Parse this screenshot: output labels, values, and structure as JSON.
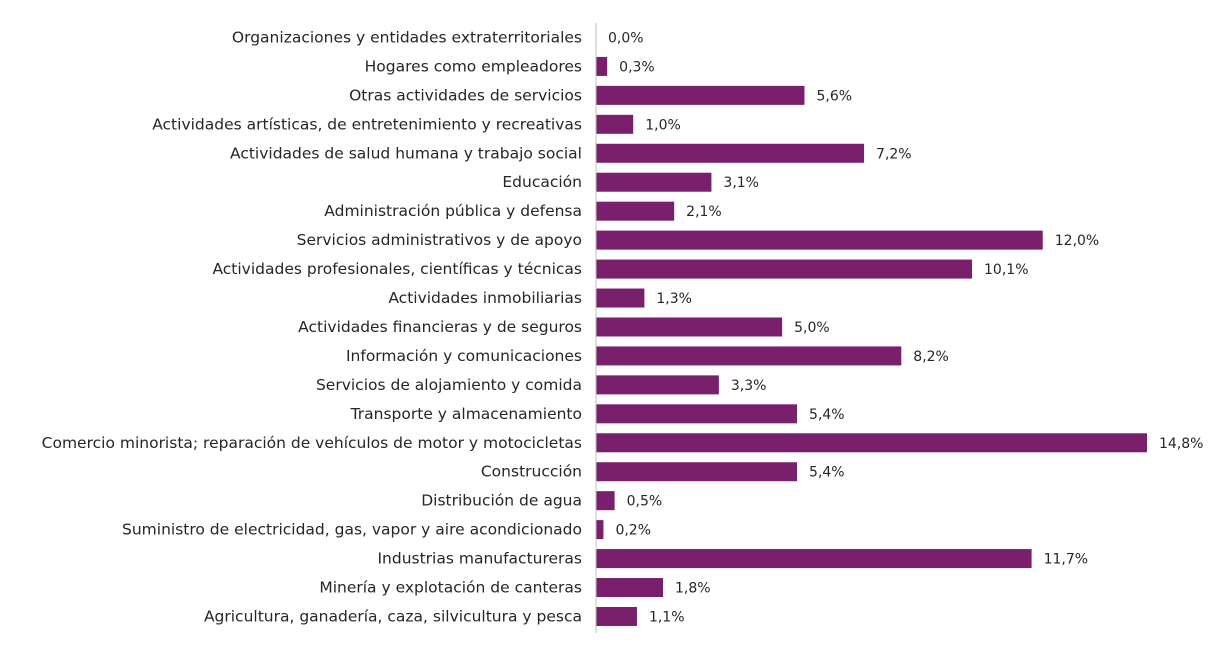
{
  "colors": {
    "bar": "#7a1f6b",
    "axis": "#bfbfbf",
    "text": "#262626"
  },
  "chart_data": {
    "type": "bar",
    "orientation": "horizontal",
    "title": "",
    "xlabel": "",
    "ylabel": "",
    "grid": false,
    "legend": "none",
    "xlim": [
      0,
      14.8
    ],
    "categories": [
      "Organizaciones y entidades extraterritoriales",
      "Hogares como empleadores",
      "Otras actividades de servicios",
      "Actividades artísticas, de entretenimiento y recreativas",
      "Actividades de salud humana y trabajo social",
      "Educación",
      "Administración pública y defensa",
      "Servicios administrativos y de apoyo",
      "Actividades profesionales, científicas y técnicas",
      "Actividades inmobiliarias",
      "Actividades financieras y de seguros",
      "Información y comunicaciones",
      "Servicios de alojamiento y comida",
      "Transporte y almacenamiento",
      "Comercio minorista; reparación de vehículos de motor y motocicletas",
      "Construcción",
      "Distribución de agua",
      "Suministro de electricidad, gas, vapor y aire acondicionado",
      "Industrias manufactureras",
      "Minería y explotación de canteras",
      "Agricultura, ganadería, caza, silvicultura y pesca"
    ],
    "values": [
      0.0,
      0.3,
      5.6,
      1.0,
      7.2,
      3.1,
      2.1,
      12.0,
      10.1,
      1.3,
      5.0,
      8.2,
      3.3,
      5.4,
      14.8,
      5.4,
      0.5,
      0.2,
      11.7,
      1.8,
      1.1
    ],
    "value_labels": [
      "0,0%",
      "0,3%",
      "5,6%",
      "1,0%",
      "7,2%",
      "3,1%",
      "2,1%",
      "12,0%",
      "10,1%",
      "1,3%",
      "5,0%",
      "8,2%",
      "3,3%",
      "5,4%",
      "14,8%",
      "5,4%",
      "0,5%",
      "0,2%",
      "11,7%",
      "1,8%",
      "1,1%"
    ]
  }
}
